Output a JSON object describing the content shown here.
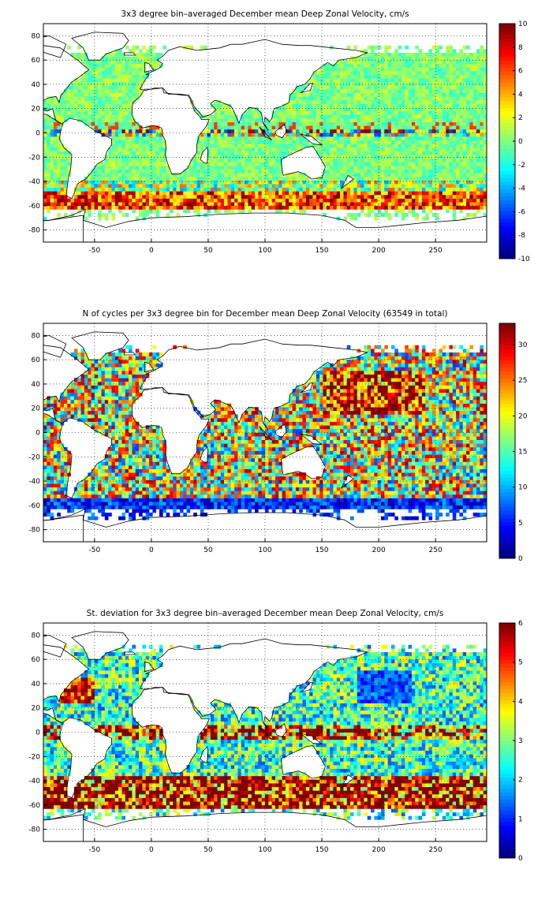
{
  "chart_data": [
    {
      "type": "heatmap",
      "title": "3x3 degree bin–averaged December mean Deep Zonal Velocity, cm/s",
      "xlabel": "",
      "ylabel": "",
      "xlim": [
        -95,
        295
      ],
      "ylim": [
        -90,
        90
      ],
      "xticks": [
        -50,
        0,
        50,
        100,
        150,
        200,
        250
      ],
      "yticks": [
        80,
        60,
        40,
        20,
        0,
        -20,
        -40,
        -60,
        -80
      ],
      "colorbar": {
        "min": -10,
        "max": 10,
        "ticks": [
          10,
          8,
          6,
          4,
          2,
          0,
          -2,
          -4,
          -6,
          -8,
          -10
        ]
      },
      "colormap": "jet",
      "grid": true,
      "field": "velocity"
    },
    {
      "type": "heatmap",
      "title": "N of cycles per 3x3 degree bin for December mean Deep Zonal Velocity (63549 in total)",
      "xlabel": "",
      "ylabel": "",
      "xlim": [
        -95,
        295
      ],
      "ylim": [
        -90,
        90
      ],
      "xticks": [
        -50,
        0,
        50,
        100,
        150,
        200,
        250
      ],
      "yticks": [
        80,
        60,
        40,
        20,
        0,
        -20,
        -40,
        -60,
        -80
      ],
      "colorbar": {
        "min": 0,
        "max": 33,
        "ticks": [
          30,
          25,
          20,
          15,
          10,
          5,
          0
        ]
      },
      "colormap": "jet",
      "grid": true,
      "field": "count"
    },
    {
      "type": "heatmap",
      "title": "St. deviation for 3x3 degree bin–averaged December mean Deep Zonal Velocity, cm/s",
      "xlabel": "",
      "ylabel": "",
      "xlim": [
        -95,
        295
      ],
      "ylim": [
        -90,
        90
      ],
      "xticks": [
        -50,
        0,
        50,
        100,
        150,
        200,
        250
      ],
      "yticks": [
        80,
        60,
        40,
        20,
        0,
        -20,
        -40,
        -60,
        -80
      ],
      "colorbar": {
        "min": 0,
        "max": 6,
        "ticks": [
          6,
          5,
          4,
          3,
          2,
          1,
          0
        ]
      },
      "colormap": "jet",
      "grid": true,
      "field": "stdev"
    }
  ]
}
